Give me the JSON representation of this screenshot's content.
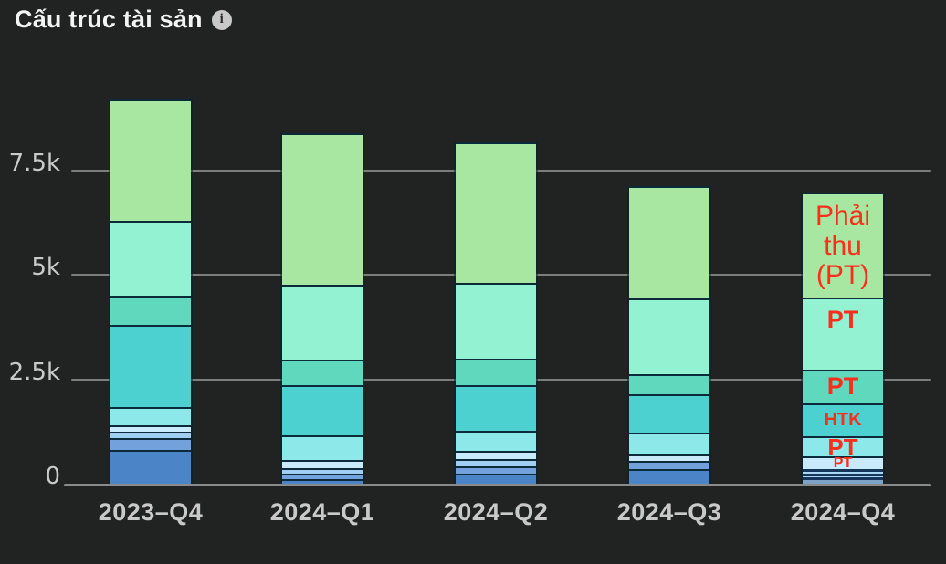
{
  "header": {
    "title": "Cấu trúc tài sản",
    "info_icon": "i"
  },
  "colors": {
    "background": "#212222",
    "title_text": "#f4f4f4",
    "axis_label": "#c9c9c9",
    "gridline": "#7d7d7d",
    "baseline": "#8a8a8a",
    "segment_border": "#0c2b3a",
    "annotation_red": "#fa2e1b",
    "segments": {
      "green": "#a7e7a2",
      "mint": "#93f2d1",
      "tealgreen": "#5fd8bd",
      "teal": "#4cd0d0",
      "aqua": "#8de9e9",
      "paleblue": "#c9eafa",
      "lightblue": "#a0cef2",
      "slateblue": "#72a1dc",
      "blue": "#4b85c8",
      "navy": "#16355c",
      "lightstripe": "#a9d6f2",
      "steelblue": "#7da4c7"
    }
  },
  "chart_data": {
    "type": "bar",
    "stacked": true,
    "title": "Cấu trúc tài sản",
    "xlabel": "",
    "ylabel": "",
    "ylim": [
      0,
      9.5
    ],
    "unit_suffix": "k",
    "grid": true,
    "y_ticks": [
      {
        "label": "0",
        "value": 0
      },
      {
        "label": "2.5k",
        "value": 2.5
      },
      {
        "label": "5k",
        "value": 5
      },
      {
        "label": "7.5k",
        "value": 7.5
      }
    ],
    "categories": [
      "2023–Q4",
      "2024–Q1",
      "2024–Q2",
      "2024–Q3",
      "2024–Q4"
    ],
    "bars": [
      {
        "category": "2023–Q4",
        "total_approx": 9.2,
        "segments": [
          {
            "color": "green",
            "value": 2.93
          },
          {
            "color": "mint",
            "value": 1.79
          },
          {
            "color": "tealgreen",
            "value": 0.7
          },
          {
            "color": "teal",
            "value": 1.97
          },
          {
            "color": "aqua",
            "value": 0.44
          },
          {
            "color": "paleblue",
            "value": 0.15
          },
          {
            "color": "lightblue",
            "value": 0.15
          },
          {
            "color": "slateblue",
            "value": 0.28
          },
          {
            "color": "blue",
            "value": 0.81
          }
        ]
      },
      {
        "category": "2024–Q1",
        "total_approx": 8.4,
        "segments": [
          {
            "color": "green",
            "value": 3.65
          },
          {
            "color": "mint",
            "value": 1.79
          },
          {
            "color": "tealgreen",
            "value": 0.61
          },
          {
            "color": "teal",
            "value": 1.2
          },
          {
            "color": "aqua",
            "value": 0.59
          },
          {
            "color": "paleblue",
            "value": 0.2
          },
          {
            "color": "lightblue",
            "value": 0.13
          },
          {
            "color": "slateblue",
            "value": 0.13
          },
          {
            "color": "blue",
            "value": 0.11
          }
        ]
      },
      {
        "category": "2024–Q2",
        "total_approx": 8.2,
        "segments": [
          {
            "color": "green",
            "value": 3.37
          },
          {
            "color": "mint",
            "value": 1.82
          },
          {
            "color": "tealgreen",
            "value": 0.63
          },
          {
            "color": "teal",
            "value": 1.09
          },
          {
            "color": "aqua",
            "value": 0.5
          },
          {
            "color": "paleblue",
            "value": 0.18
          },
          {
            "color": "lightblue",
            "value": 0.18
          },
          {
            "color": "slateblue",
            "value": 0.18
          },
          {
            "color": "blue",
            "value": 0.24
          }
        ]
      },
      {
        "category": "2024–Q3",
        "total_approx": 7.1,
        "segments": [
          {
            "color": "green",
            "value": 2.69
          },
          {
            "color": "mint",
            "value": 1.82
          },
          {
            "color": "tealgreen",
            "value": 0.48
          },
          {
            "color": "teal",
            "value": 0.92
          },
          {
            "color": "aqua",
            "value": 0.53
          },
          {
            "color": "paleblue",
            "value": 0.15
          },
          {
            "color": "slateblue",
            "value": 0.2
          },
          {
            "color": "blue",
            "value": 0.35
          }
        ]
      },
      {
        "category": "2024–Q4",
        "total_approx": 7.0,
        "segments": [
          {
            "color": "green",
            "value": 2.52,
            "label": "Phải thu\n(PT)",
            "label_size": 30
          },
          {
            "color": "mint",
            "value": 1.71,
            "label": "PT",
            "label_size": 27,
            "label_align": "top",
            "label_bold": true
          },
          {
            "color": "tealgreen",
            "value": 0.81,
            "label": "PT",
            "label_size": 27,
            "label_bold": true
          },
          {
            "color": "teal",
            "value": 0.79,
            "label": "HTK",
            "label_size": 20,
            "label_bold": true
          },
          {
            "color": "aqua",
            "value": 0.48,
            "label": "PT",
            "label_size": 26,
            "label_bold": true
          },
          {
            "color": "paleblue",
            "value": 0.31,
            "label": "PT",
            "label_size": 16,
            "label_bold": true
          },
          {
            "color": "navy",
            "value": 0.066
          },
          {
            "color": "lightstripe",
            "value": 0.044
          },
          {
            "color": "navy",
            "value": 0.066
          },
          {
            "color": "lightstripe",
            "value": 0.022
          },
          {
            "color": "navy",
            "value": 0.066
          },
          {
            "color": "steelblue",
            "value": 0.088
          }
        ]
      }
    ],
    "annotations_note": "Red overlay labels drawn on the 2024–Q4 bar: Phải thu (PT), PT, PT, HTK, PT, PT"
  }
}
